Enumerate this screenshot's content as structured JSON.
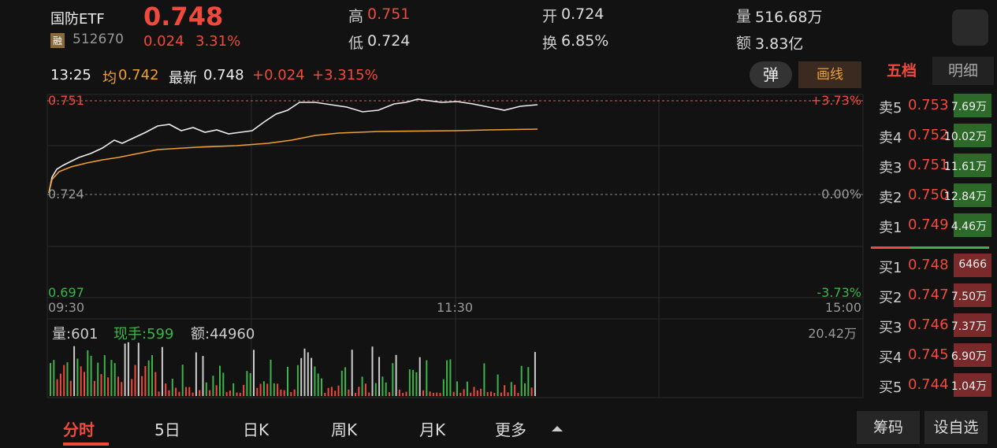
{
  "header": {
    "name": "国防ETF",
    "price": "0.748",
    "tag": "融",
    "code": "512670",
    "change": "0.024",
    "pct": "3.31%",
    "stats": [
      {
        "label": "高",
        "value": "0.751"
      },
      {
        "label": "开",
        "value": "0.724"
      },
      {
        "label": "量",
        "value": "516.68万"
      },
      {
        "label": "低",
        "value": "0.724"
      },
      {
        "label": "换",
        "value": "6.85%"
      },
      {
        "label": "额",
        "value": "3.83亿"
      }
    ]
  },
  "toolbar": {
    "time": "13:25",
    "avg_label": "均",
    "avg": "0.742",
    "latest_label": "最新",
    "latest": "0.748",
    "change": "+0.024",
    "pct": "+3.315%",
    "popup": "弹",
    "draw": "画线"
  },
  "chart": {
    "left_labels": [
      "0.751",
      "0.724",
      "0.697"
    ],
    "right_labels": [
      "+3.73%",
      "0.00%",
      "-3.73%"
    ],
    "time_labels": [
      "09:30",
      "11:30",
      "15:00"
    ],
    "volume": {
      "vol": "量:601",
      "hand": "现手:599",
      "amount": "额:44960",
      "max": "20.42万"
    }
  },
  "order_book": {
    "tabs": [
      "五档",
      "明细"
    ],
    "asks": [
      {
        "label": "卖5",
        "price": "0.753",
        "vol": "7.69万"
      },
      {
        "label": "卖4",
        "price": "0.752",
        "vol": "10.02万"
      },
      {
        "label": "卖3",
        "price": "0.751",
        "vol": "11.61万"
      },
      {
        "label": "卖2",
        "price": "0.750",
        "vol": "12.84万"
      },
      {
        "label": "卖1",
        "price": "0.749",
        "vol": "4.46万"
      }
    ],
    "bids": [
      {
        "label": "买1",
        "price": "0.748",
        "vol": "6466"
      },
      {
        "label": "买2",
        "price": "0.747",
        "vol": "7.50万"
      },
      {
        "label": "买3",
        "price": "0.746",
        "vol": "7.37万"
      },
      {
        "label": "买4",
        "price": "0.745",
        "vol": "6.90万"
      },
      {
        "label": "买5",
        "price": "0.744",
        "vol": "1.04万"
      }
    ]
  },
  "tabs": [
    "分时",
    "5日",
    "日K",
    "周K",
    "月K",
    "更多"
  ],
  "buttons": [
    "筹码",
    "设自选"
  ]
}
